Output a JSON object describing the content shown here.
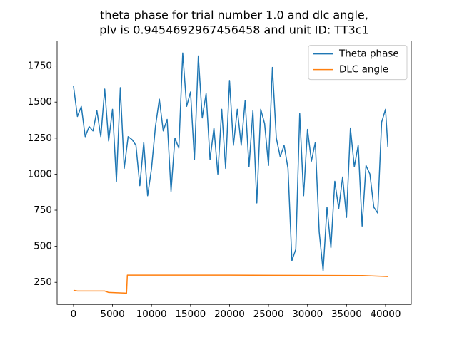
{
  "chart_data": {
    "type": "line",
    "title": [
      "theta phase for trial number 1.0 and dlc angle,",
      "plv is 0.9454692967456458 and unit ID: TT3c1"
    ],
    "xlim": [
      -2100,
      43300
    ],
    "ylim": [
      97,
      1923
    ],
    "xticks": [
      0,
      5000,
      10000,
      15000,
      20000,
      25000,
      30000,
      35000,
      40000
    ],
    "yticks": [
      250,
      500,
      750,
      1000,
      1250,
      1500,
      1750
    ],
    "legend": "upper right",
    "series": [
      {
        "name": "Theta phase",
        "color": "#1f77b4",
        "x": [
          0,
          500,
          1000,
          1500,
          2000,
          2500,
          3000,
          3500,
          4000,
          4500,
          5000,
          5500,
          6000,
          6500,
          7000,
          7500,
          8000,
          8500,
          9000,
          9500,
          10000,
          10500,
          11000,
          11500,
          12000,
          12500,
          13000,
          13500,
          14000,
          14500,
          15000,
          15500,
          16000,
          16500,
          17000,
          17500,
          18000,
          18500,
          19000,
          19500,
          20000,
          20500,
          21000,
          21500,
          22000,
          22500,
          23000,
          23500,
          24000,
          24500,
          25000,
          25500,
          26000,
          26500,
          27000,
          27500,
          28000,
          28500,
          29000,
          29500,
          30000,
          30500,
          31000,
          31500,
          32000,
          32500,
          33000,
          33500,
          34000,
          34500,
          35000,
          35500,
          36000,
          36500,
          37000,
          37500,
          38000,
          38500,
          39000,
          39500,
          40000,
          40300
        ],
        "values": [
          1610,
          1400,
          1470,
          1260,
          1330,
          1300,
          1440,
          1260,
          1590,
          1230,
          1450,
          950,
          1600,
          1040,
          1260,
          1240,
          1200,
          920,
          1220,
          850,
          1040,
          1330,
          1520,
          1300,
          1380,
          880,
          1250,
          1180,
          1840,
          1470,
          1570,
          1100,
          1820,
          1390,
          1560,
          1100,
          1320,
          1000,
          1450,
          1040,
          1650,
          1200,
          1450,
          1200,
          1510,
          1050,
          1440,
          800,
          1450,
          1350,
          1060,
          1740,
          1250,
          1120,
          1200,
          1040,
          400,
          480,
          1420,
          850,
          1310,
          1090,
          1220,
          600,
          330,
          770,
          490,
          950,
          760,
          980,
          700,
          1320,
          1050,
          1200,
          640,
          1060,
          1000,
          770,
          730,
          1360,
          1450,
          1190
        ]
      },
      {
        "name": "DLC angle",
        "color": "#ff7f0e",
        "x": [
          0,
          500,
          4000,
          4500,
          6800,
          6900,
          20000,
          30000,
          37000,
          40300
        ],
        "values": [
          195,
          190,
          190,
          180,
          175,
          300,
          300,
          298,
          297,
          290
        ]
      }
    ]
  }
}
